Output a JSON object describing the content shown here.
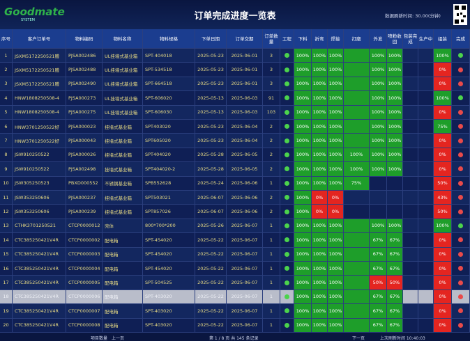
{
  "header": {
    "logo": "Goodmate",
    "logo_sub": "SYSTEM",
    "title": "订单完成进度一览表",
    "refresh": "数据刷新时间: 30.00(分钟)"
  },
  "table": {
    "columns": [
      "序号",
      "客户订单号",
      "物料编码",
      "物料名称",
      "物料规格",
      "下单日期",
      "订单交期",
      "订单数量",
      "工程",
      "下料",
      "折弯",
      "焊接",
      "打磨",
      "外发",
      "喷粉收回",
      "包装完成",
      "生产中",
      "组装",
      "完成"
    ],
    "rows": [
      [
        "1",
        "JSXM5172250521赠",
        "PJSA002486",
        "UL挂墙式基业箱",
        "SPT-404018",
        "2025-05-23",
        "2025-06-01",
        "3",
        null,
        "100%",
        "100%",
        "100%",
        null,
        "100%",
        "100%",
        null,
        null,
        "100%",
        null
      ],
      [
        "2",
        "JSXM5172250521赠",
        "PJSA002488",
        "UL挂墙式基业箱",
        "SPT-534518",
        "2025-05-23",
        "2025-06-01",
        "3",
        null,
        "100%",
        "100%",
        "100%",
        null,
        "100%",
        "100%",
        null,
        null,
        "0%",
        null
      ],
      [
        "3",
        "JSXM5172250521赠",
        "PJSA002490",
        "UL挂墙式基业箱",
        "SPT-664518",
        "2025-05-23",
        "2025-06-01",
        "3",
        null,
        "100%",
        "100%",
        "100%",
        null,
        "100%",
        "100%",
        null,
        null,
        "0%",
        null
      ],
      [
        "4",
        "HNW1808250508-4",
        "PJSA000273",
        "UL挂墙式基业箱",
        "SPT-606020",
        "2025-05-13",
        "2025-06-03",
        "91",
        null,
        "100%",
        "100%",
        "100%",
        null,
        "100%",
        "100%",
        null,
        null,
        "100%",
        null
      ],
      [
        "5",
        "HNW1808250508-4",
        "PJSA000275",
        "UL挂墙式基业箱",
        "SPT-606030",
        "2025-05-13",
        "2025-06-03",
        "103",
        null,
        "100%",
        "100%",
        "100%",
        null,
        "100%",
        "100%",
        null,
        null,
        "0%",
        null
      ],
      [
        "6",
        "HNW3701250522好",
        "PJSA000023",
        "挂墙式基业箱",
        "SPT403020",
        "2025-05-23",
        "2025-06-04",
        "2",
        null,
        "100%",
        "100%",
        "100%",
        null,
        "100%",
        "100%",
        null,
        null,
        "75%",
        null
      ],
      [
        "7",
        "HNW3701250522好",
        "PJSA000043",
        "挂墙式基业箱",
        "SPT605020",
        "2025-05-23",
        "2025-06-04",
        "2",
        null,
        "100%",
        "100%",
        "100%",
        null,
        "100%",
        "100%",
        null,
        null,
        "0%",
        null
      ],
      [
        "8",
        "JSW910250522",
        "PJSA000026",
        "挂墙式基业箱",
        "SPT404020",
        "2025-05-28",
        "2025-06-05",
        "2",
        null,
        "100%",
        "100%",
        "100%",
        "100%",
        "100%",
        "100%",
        null,
        null,
        "0%",
        null
      ],
      [
        "9",
        "JSW910250522",
        "PJSA002498",
        "挂墙式基业箱",
        "SPT404020-2",
        "2025-05-28",
        "2025-06-05",
        "2",
        null,
        "100%",
        "100%",
        "100%",
        "100%",
        "100%",
        "100%",
        null,
        null,
        "0%",
        null
      ],
      [
        "10",
        "JSW305250523",
        "PBXD000552",
        "不锈钢基业箱",
        "SPB552628",
        "2025-05-24",
        "2025-06-06",
        "1",
        null,
        "100%",
        "100%",
        "100%",
        "75%",
        null,
        null,
        null,
        null,
        "50%",
        null
      ],
      [
        "11",
        "JSW353250606",
        "PJSA000237",
        "挂墙式基业箱",
        "SPT503021",
        "2025-06-07",
        "2025-06-06",
        "2",
        null,
        "100%",
        "0%",
        "0%",
        null,
        null,
        null,
        null,
        null,
        "43%",
        null
      ],
      [
        "12",
        "JSW353250606",
        "PJSA000239",
        "挂墙式基业箱",
        "SPT857026",
        "2025-06-07",
        "2025-06-06",
        "2",
        null,
        "100%",
        "0%",
        "0%",
        null,
        null,
        null,
        null,
        null,
        "50%",
        null
      ],
      [
        "13",
        "CTHK3701250521",
        "CTCP0000012",
        "壳体",
        "800*700*200",
        "2025-05-26",
        "2025-06-07",
        "1",
        null,
        "100%",
        "100%",
        "100%",
        null,
        "100%",
        "100%",
        null,
        null,
        "100%",
        null
      ],
      [
        "14",
        "CTC385250421V4R",
        "CTCP0000002",
        "配电箱",
        "SPT-454020",
        "2025-05-22",
        "2025-06-07",
        "1",
        null,
        "100%",
        "100%",
        "100%",
        null,
        "67%",
        "67%",
        null,
        null,
        "0%",
        null
      ],
      [
        "15",
        "CTC385250421V4R",
        "CTCP0000003",
        "配电箱",
        "SPT-454020",
        "2025-05-22",
        "2025-06-07",
        "1",
        null,
        "100%",
        "100%",
        "100%",
        null,
        "67%",
        "67%",
        null,
        null,
        "0%",
        null
      ],
      [
        "16",
        "CTC385250421V4R",
        "CTCP0000004",
        "配电箱",
        "SPT-454020",
        "2025-05-22",
        "2025-06-07",
        "1",
        null,
        "100%",
        "100%",
        "100%",
        null,
        "67%",
        "67%",
        null,
        null,
        "0%",
        null
      ],
      [
        "17",
        "CTC385250421V4R",
        "CTCP0000005",
        "配电箱",
        "SPT-504525",
        "2025-05-22",
        "2025-06-07",
        "1",
        null,
        "100%",
        "100%",
        "100%",
        null,
        "50%",
        "50%",
        null,
        null,
        "0%",
        null
      ],
      [
        "18",
        "CTC385250421V4R",
        "CTCP0000006",
        "配电箱",
        "SPT-403020",
        "2025-05-22",
        "2025-06-07",
        "1",
        null,
        "100%",
        "100%",
        "100%",
        null,
        "67%",
        "67%",
        null,
        null,
        "0%",
        null
      ],
      [
        "19",
        "CTC385250421V4R",
        "CTCP0000007",
        "配电箱",
        "SPT-403020",
        "2025-05-22",
        "2025-06-07",
        "1",
        null,
        "100%",
        "100%",
        "100%",
        null,
        "67%",
        "67%",
        null,
        null,
        "0%",
        null
      ],
      [
        "20",
        "CTC385250421V4R",
        "CTCP0000008",
        "配电箱",
        "SPT-403020",
        "2025-05-22",
        "2025-06-07",
        "1",
        null,
        "100%",
        "100%",
        "100%",
        null,
        "67%",
        "67%",
        null,
        null,
        "0%",
        null
      ]
    ],
    "fills": [
      [
        "#4cd34c",
        "#1e9e2a",
        "#1e9e2a",
        "#1e9e2a",
        "#1e9e2a",
        "#1e9e2a",
        "#1e9e2a",
        null,
        null,
        "#1e9e2a",
        "#4cd34c"
      ],
      [
        "#4cd34c",
        "#1e9e2a",
        "#1e9e2a",
        "#1e9e2a",
        "#1e9e2a",
        "#1e9e2a",
        "#1e9e2a",
        null,
        null,
        "#e42520",
        "#e84a4a"
      ],
      [
        "#4cd34c",
        "#1e9e2a",
        "#1e9e2a",
        "#1e9e2a",
        "#1e9e2a",
        "#1e9e2a",
        "#1e9e2a",
        null,
        null,
        "#e42520",
        "#e84a4a"
      ],
      [
        "#4cd34c",
        "#1e9e2a",
        "#1e9e2a",
        "#1e9e2a",
        "#1e9e2a",
        "#1e9e2a",
        "#1e9e2a",
        null,
        null,
        "#1e9e2a",
        "#4cd34c"
      ],
      [
        "#4cd34c",
        "#1e9e2a",
        "#1e9e2a",
        "#1e9e2a",
        "#1e9e2a",
        "#1e9e2a",
        "#1e9e2a",
        null,
        null,
        "#e42520",
        "#e84a4a"
      ],
      [
        "#4cd34c",
        "#1e9e2a",
        "#1e9e2a",
        "#1e9e2a",
        "#1e9e2a",
        "#1e9e2a",
        "#1e9e2a",
        null,
        null,
        "#1e9e2a",
        "#e84a4a"
      ],
      [
        "#4cd34c",
        "#1e9e2a",
        "#1e9e2a",
        "#1e9e2a",
        "#1e9e2a",
        "#1e9e2a",
        "#1e9e2a",
        null,
        null,
        "#e42520",
        "#e84a4a"
      ],
      [
        "#4cd34c",
        "#1e9e2a",
        "#1e9e2a",
        "#1e9e2a",
        "#1e9e2a",
        "#1e9e2a",
        "#1e9e2a",
        null,
        null,
        "#e42520",
        "#e84a4a"
      ],
      [
        "#4cd34c",
        "#1e9e2a",
        "#1e9e2a",
        "#1e9e2a",
        "#1e9e2a",
        "#1e9e2a",
        "#1e9e2a",
        null,
        null,
        "#e42520",
        "#e84a4a"
      ],
      [
        "#4cd34c",
        "#1e9e2a",
        "#1e9e2a",
        "#1e9e2a",
        "#1e9e2a",
        null,
        null,
        null,
        null,
        "#e42520",
        "#e84a4a"
      ],
      [
        "#4cd34c",
        "#1e9e2a",
        "#e42520",
        "#e42520",
        null,
        null,
        null,
        null,
        null,
        "#e42520",
        "#e84a4a"
      ],
      [
        "#4cd34c",
        "#1e9e2a",
        "#e42520",
        "#e42520",
        null,
        null,
        null,
        null,
        null,
        "#e42520",
        "#e84a4a"
      ],
      [
        "#4cd34c",
        "#1e9e2a",
        "#1e9e2a",
        "#1e9e2a",
        "#1e9e2a",
        "#1e9e2a",
        "#1e9e2a",
        null,
        null,
        "#1e9e2a",
        "#4cd34c"
      ],
      [
        "#4cd34c",
        "#1e9e2a",
        "#1e9e2a",
        "#1e9e2a",
        "#1e9e2a",
        "#1e9e2a",
        "#1e9e2a",
        null,
        null,
        "#e42520",
        "#e84a4a"
      ],
      [
        "#4cd34c",
        "#1e9e2a",
        "#1e9e2a",
        "#1e9e2a",
        "#1e9e2a",
        "#1e9e2a",
        "#1e9e2a",
        null,
        null,
        "#e42520",
        "#e84a4a"
      ],
      [
        "#4cd34c",
        "#1e9e2a",
        "#1e9e2a",
        "#1e9e2a",
        "#1e9e2a",
        "#1e9e2a",
        "#1e9e2a",
        null,
        null,
        "#e42520",
        "#e84a4a"
      ],
      [
        "#4cd34c",
        "#1e9e2a",
        "#1e9e2a",
        "#1e9e2a",
        "#1e9e2a",
        "#e42520",
        "#e42520",
        null,
        null,
        "#e42520",
        "#e84a4a"
      ],
      [
        "#4cd34c",
        "#1e9e2a",
        "#1e9e2a",
        "#1e9e2a",
        "#1e9e2a",
        "#1e9e2a",
        "#1e9e2a",
        null,
        null,
        "#e42520",
        "#e84a4a"
      ],
      [
        "#4cd34c",
        "#1e9e2a",
        "#1e9e2a",
        "#1e9e2a",
        "#1e9e2a",
        "#1e9e2a",
        "#1e9e2a",
        null,
        null,
        "#e42520",
        "#e84a4a"
      ],
      [
        "#4cd34c",
        "#1e9e2a",
        "#1e9e2a",
        "#1e9e2a",
        "#1e9e2a",
        "#1e9e2a",
        "#1e9e2a",
        null,
        null,
        "#e42520",
        "#e84a4a"
      ]
    ]
  },
  "footer": {
    "left": "项目数量",
    "prev": "上一页",
    "page": "第 1 / 8 页 共 145 条记录",
    "next": "下一页",
    "last_refresh": "上次刷新时间 10:40:03"
  }
}
